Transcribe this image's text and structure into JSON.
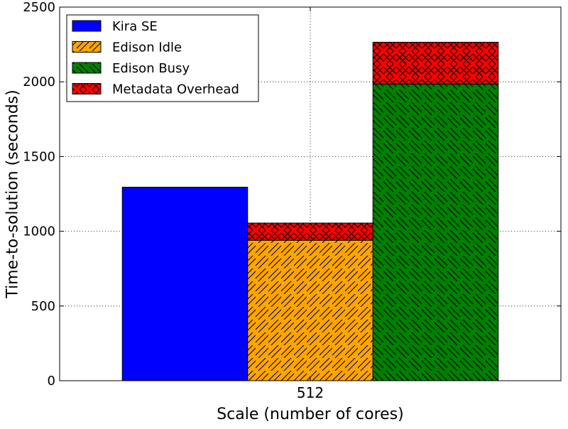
{
  "chart_data": {
    "type": "bar",
    "title": "",
    "xlabel": "Scale (number of cores)",
    "ylabel": "Time-to-solution (seconds)",
    "categories": [
      "512"
    ],
    "ylim": [
      0,
      2500
    ],
    "yticks": [
      0,
      500,
      1000,
      1500,
      2000,
      2500
    ],
    "grid": true,
    "legend_position": "top-left",
    "bars": [
      {
        "segments": [
          {
            "series": "Kira SE",
            "value": 1295
          }
        ]
      },
      {
        "segments": [
          {
            "series": "Edison Idle",
            "value": 940
          },
          {
            "series": "Metadata Overhead",
            "value": 115
          }
        ]
      },
      {
        "segments": [
          {
            "series": "Edison Busy",
            "value": 1985
          },
          {
            "series": "Metadata Overhead",
            "value": 280
          }
        ]
      }
    ],
    "series": [
      {
        "name": "Kira SE",
        "color": "#0000ff",
        "hatch": "none"
      },
      {
        "name": "Edison Idle",
        "color": "#ffa500",
        "hatch": "forward-diagonal"
      },
      {
        "name": "Edison Busy",
        "color": "#008000",
        "hatch": "back-diagonal"
      },
      {
        "name": "Metadata Overhead",
        "color": "#ff0000",
        "hatch": "cross"
      }
    ]
  }
}
